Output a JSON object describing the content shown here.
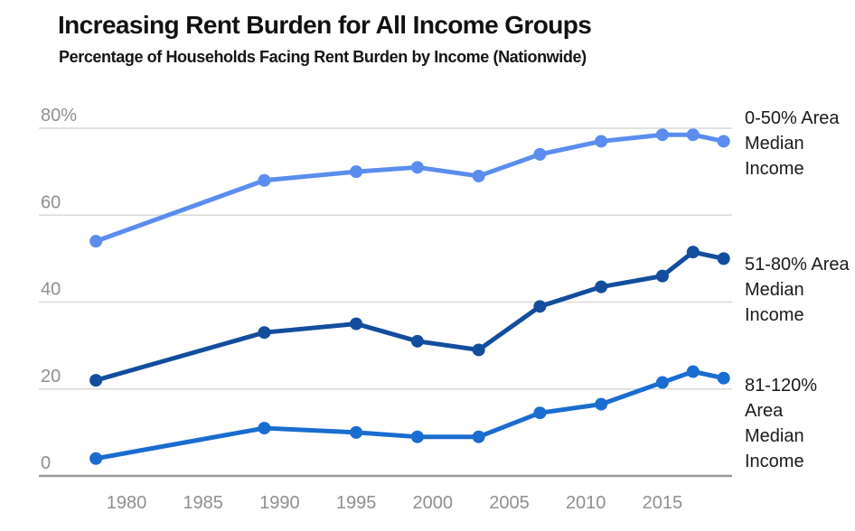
{
  "header": {
    "title": "Increasing Rent Burden for All Income Groups",
    "subtitle": "Percentage of Households Facing Rent Burden by Income (Nationwide)"
  },
  "chart_data": {
    "type": "line",
    "title": "Increasing Rent Burden for All Income Groups",
    "subtitle": "Percentage of Households Facing Rent Burden by Income (Nationwide)",
    "x": [
      1978,
      1989,
      1995,
      1999,
      2003,
      2007,
      2011,
      2015,
      2017,
      2019
    ],
    "x_ticks": [
      {
        "value": 1980,
        "label": "1980"
      },
      {
        "value": 1985,
        "label": "1985"
      },
      {
        "value": 1990,
        "label": "1990"
      },
      {
        "value": 1995,
        "label": "1995"
      },
      {
        "value": 2000,
        "label": "2000"
      },
      {
        "value": 2005,
        "label": "2005"
      },
      {
        "value": 2010,
        "label": "2010"
      },
      {
        "value": 2015,
        "label": "2015"
      }
    ],
    "y_ticks": [
      {
        "value": 80,
        "label": "80%"
      },
      {
        "value": 60,
        "label": "60"
      },
      {
        "value": 40,
        "label": "40"
      },
      {
        "value": 20,
        "label": "20"
      },
      {
        "value": 0,
        "label": "0"
      }
    ],
    "ylim": [
      0,
      85
    ],
    "xlim": [
      1976,
      2021
    ],
    "grid": "horizontal",
    "legend_position": "right",
    "series": [
      {
        "name": "0-50% Area Median Income",
        "legend": "0-50% Area\nMedian\nIncome",
        "color": "#5b8def",
        "values": [
          54,
          68,
          70,
          71,
          69,
          74,
          77,
          78.5,
          78.5,
          77
        ]
      },
      {
        "name": "51-80% Area Median Income",
        "legend": "51-80% Area\nMedian\nIncome",
        "color": "#134d9d",
        "values": [
          22,
          33,
          35,
          31,
          29,
          39,
          43.5,
          46,
          51.5,
          50
        ]
      },
      {
        "name": "81-120% Area Median Income",
        "legend": "81-120%\nArea\nMedian\nIncome",
        "color": "#1a6dd0",
        "values": [
          4,
          11,
          10,
          9,
          9,
          14.5,
          16.5,
          21.5,
          24,
          22.5
        ]
      }
    ],
    "palette": {
      "gridline": "#d9d9d9",
      "axis_line": "#999999",
      "tick_label": "#8f8f8f",
      "title_text": "#111111",
      "legend_text": "#1a1a1a"
    }
  }
}
